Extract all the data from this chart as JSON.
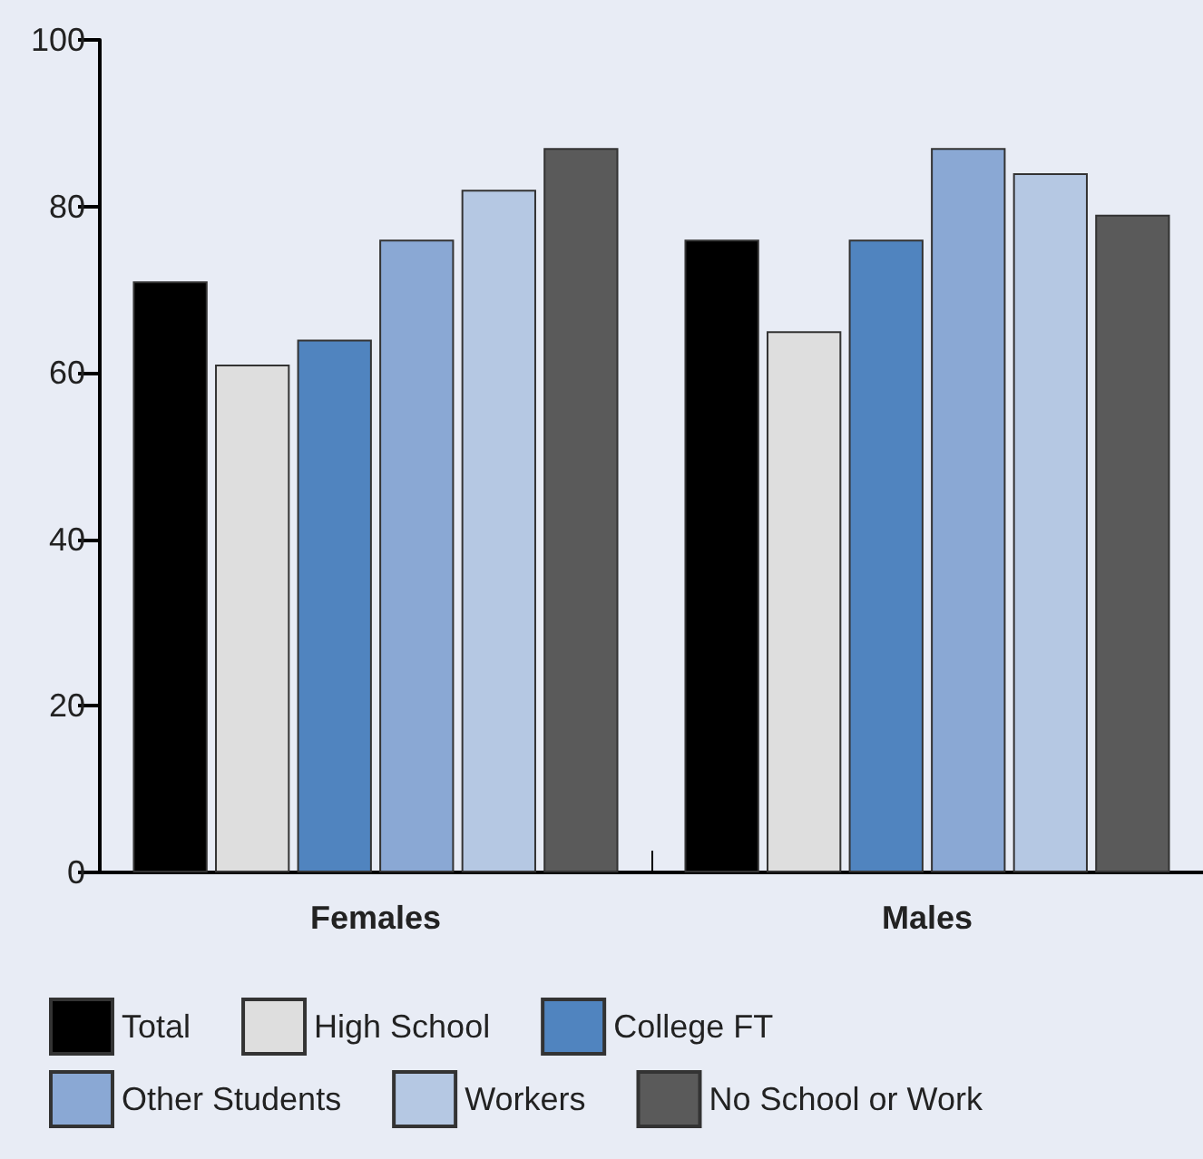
{
  "chart_data": {
    "type": "bar",
    "categories": [
      "Females",
      "Males"
    ],
    "series": [
      {
        "name": "Total",
        "color": "#000000",
        "values": [
          71,
          76
        ]
      },
      {
        "name": "High School",
        "color": "#dedede",
        "values": [
          61,
          65
        ]
      },
      {
        "name": "College FT",
        "color": "#5084bf",
        "values": [
          64,
          76
        ]
      },
      {
        "name": "Other Students",
        "color": "#8aa8d4",
        "values": [
          76,
          87
        ]
      },
      {
        "name": "Workers",
        "color": "#b5c8e3",
        "values": [
          82,
          84
        ]
      },
      {
        "name": "No School or Work",
        "color": "#5a5a5a",
        "values": [
          87,
          79
        ]
      }
    ],
    "ylim": [
      0,
      100
    ],
    "yticks": [
      0,
      20,
      40,
      60,
      80,
      100
    ],
    "grid": false,
    "legend": "bottom"
  }
}
